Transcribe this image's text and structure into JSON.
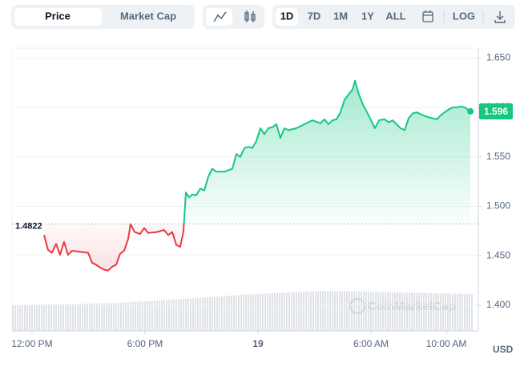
{
  "toolbar": {
    "views": [
      "Price",
      "Market Cap"
    ],
    "ranges": [
      "1D",
      "7D",
      "1M",
      "1Y",
      "ALL"
    ],
    "log": "LOG"
  },
  "chart_data": {
    "type": "line",
    "currency": "USD",
    "watermark": "CoinMarketCap",
    "up_color": "#16c784",
    "down_color": "#ea3943",
    "baseline": {
      "value": 1.4822,
      "label": "1.4822"
    },
    "xlim": [
      10.94,
      35.7
    ],
    "ylim": [
      1.374,
      1.66
    ],
    "xticks": [
      {
        "value": 12,
        "label": "12:00 PM"
      },
      {
        "value": 18,
        "label": "6:00 PM"
      },
      {
        "value": 24,
        "label": "19"
      },
      {
        "value": 30,
        "label": "6:00 AM"
      },
      {
        "value": 34,
        "label": "10:00 AM"
      }
    ],
    "yticks": [
      {
        "value": 1.65,
        "label": "1.650"
      },
      {
        "value": 1.6,
        "label": "1.600"
      },
      {
        "value": 1.55,
        "label": "1.550"
      },
      {
        "value": 1.5,
        "label": "1.500"
      },
      {
        "value": 1.45,
        "label": "1.450"
      },
      {
        "value": 1.4,
        "label": "1.400"
      }
    ],
    "grid": true,
    "x": [
      12.64,
      12.85,
      13.06,
      13.28,
      13.49,
      13.7,
      13.91,
      14.13,
      14.55,
      14.98,
      15.19,
      15.4,
      15.62,
      15.83,
      16.04,
      16.26,
      16.47,
      16.68,
      16.89,
      17.11,
      17.23,
      17.45,
      17.74,
      17.96,
      18.17,
      18.6,
      19.02,
      19.23,
      19.45,
      19.66,
      19.87,
      20.04,
      20.17,
      20.34,
      20.51,
      20.72,
      20.94,
      21.15,
      21.36,
      21.57,
      21.79,
      22.21,
      22.64,
      22.85,
      23.06,
      23.28,
      23.49,
      23.7,
      23.91,
      24.13,
      24.34,
      24.55,
      24.77,
      24.98,
      25.19,
      25.4,
      25.62,
      26.04,
      26.47,
      26.89,
      27.32,
      27.53,
      27.74,
      27.96,
      28.17,
      28.38,
      28.6,
      28.81,
      29.02,
      29.15,
      29.36,
      29.57,
      29.79,
      30.0,
      30.21,
      30.43,
      30.72,
      30.94,
      31.15,
      31.57,
      31.79,
      32.0,
      32.21,
      32.43,
      32.64,
      33.06,
      33.49,
      33.7,
      33.91,
      34.13,
      34.34,
      34.55,
      34.77,
      34.98,
      35.28
    ],
    "series": [
      {
        "name": "Price",
        "values": [
          1.471,
          1.456,
          1.453,
          1.462,
          1.451,
          1.464,
          1.451,
          1.455,
          1.454,
          1.453,
          1.443,
          1.441,
          1.438,
          1.436,
          1.435,
          1.439,
          1.441,
          1.452,
          1.455,
          1.467,
          1.482,
          1.474,
          1.472,
          1.478,
          1.473,
          1.474,
          1.476,
          1.471,
          1.474,
          1.461,
          1.459,
          1.474,
          1.514,
          1.509,
          1.512,
          1.511,
          1.518,
          1.516,
          1.53,
          1.538,
          1.535,
          1.535,
          1.538,
          1.553,
          1.55,
          1.559,
          1.56,
          1.559,
          1.566,
          1.579,
          1.573,
          1.579,
          1.58,
          1.583,
          1.569,
          1.579,
          1.577,
          1.579,
          1.583,
          1.587,
          1.584,
          1.588,
          1.583,
          1.587,
          1.588,
          1.595,
          1.608,
          1.613,
          1.618,
          1.627,
          1.613,
          1.603,
          1.595,
          1.587,
          1.579,
          1.587,
          1.588,
          1.585,
          1.587,
          1.579,
          1.577,
          1.589,
          1.594,
          1.595,
          1.593,
          1.59,
          1.588,
          1.592,
          1.595,
          1.598,
          1.6,
          1.6,
          1.601,
          1.6,
          1.596
        ]
      }
    ]
  }
}
